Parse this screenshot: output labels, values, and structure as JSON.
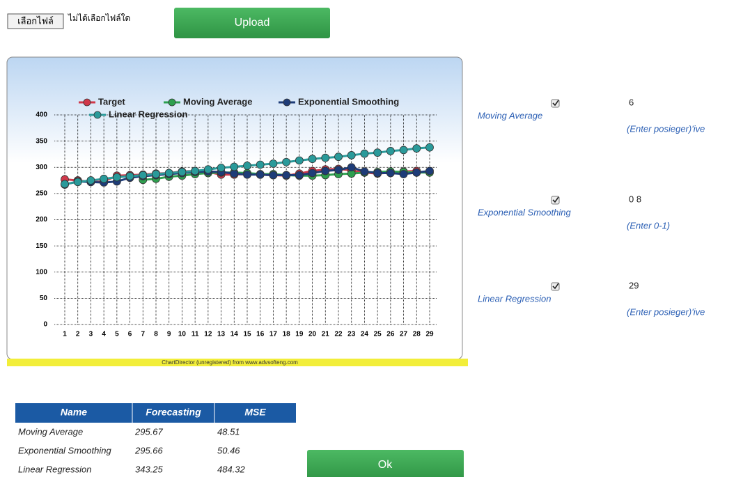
{
  "file_input": {
    "button": "เลือกไฟล์",
    "status": "ไม่ได้เลือกไฟล์ใด"
  },
  "upload_button": "Upload",
  "chart_data": {
    "type": "line",
    "categories": [
      1,
      2,
      3,
      4,
      5,
      6,
      7,
      8,
      9,
      10,
      11,
      12,
      13,
      14,
      15,
      16,
      17,
      18,
      19,
      20,
      21,
      22,
      23,
      24,
      25,
      26,
      27,
      28,
      29
    ],
    "series": [
      {
        "name": "Target",
        "color": "#d0384a",
        "values": [
          277,
          275,
          272,
          273,
          284,
          285,
          286,
          288,
          289,
          292,
          293,
          291,
          286,
          286,
          287,
          286,
          285,
          284,
          288,
          293,
          296,
          297,
          294,
          290,
          288,
          290,
          292,
          293,
          null
        ]
      },
      {
        "name": "Moving Average",
        "color": "#2ea04f",
        "values": [
          null,
          null,
          null,
          null,
          null,
          null,
          276,
          278,
          282,
          284,
          287,
          289,
          290,
          290,
          289,
          287,
          287,
          285,
          284,
          284,
          285,
          287,
          288,
          290,
          291,
          292,
          291,
          290,
          290
        ]
      },
      {
        "name": "Exponential Smoothing",
        "color": "#1e3c78",
        "values": [
          267,
          273,
          272,
          271,
          273,
          280,
          283,
          285,
          287,
          289,
          291,
          292,
          291,
          288,
          286,
          286,
          285,
          285,
          285,
          289,
          293,
          295,
          300,
          292,
          289,
          289,
          287,
          290,
          293
        ]
      },
      {
        "name": "Linear Regression",
        "color": "#2a9a9a",
        "values": [
          268,
          272,
          275,
          278,
          281,
          283,
          285,
          287,
          289,
          291,
          293,
          296,
          299,
          301,
          303,
          305,
          307,
          310,
          313,
          316,
          318,
          320,
          323,
          326,
          328,
          331,
          333,
          336,
          338
        ]
      }
    ],
    "ylim": [
      0,
      400
    ],
    "yticks": [
      0,
      50,
      100,
      150,
      200,
      250,
      300,
      350,
      400
    ],
    "grid": true,
    "footer": "ChartDirector (unregistered) from www.advsofteng.com"
  },
  "settings": [
    {
      "label": "Moving Average",
      "value": "6",
      "hint": "(Enter posieger)'ive"
    },
    {
      "label": "Exponential Smoothing",
      "value": "0 8",
      "hint": "(Enter 0-1)"
    },
    {
      "label": "Linear Regression",
      "value": "29",
      "hint": "(Enter posieger)'ive"
    }
  ],
  "results_table": {
    "header": [
      "Name",
      "Forecasting",
      "MSE"
    ],
    "rows": [
      [
        "Moving Average",
        "295.67",
        "48.51"
      ],
      [
        "Exponential Smoothing",
        "295.66",
        "50.46"
      ],
      [
        "Linear Regression",
        "343.25",
        "484.32"
      ]
    ]
  },
  "ok_button": "Ok"
}
